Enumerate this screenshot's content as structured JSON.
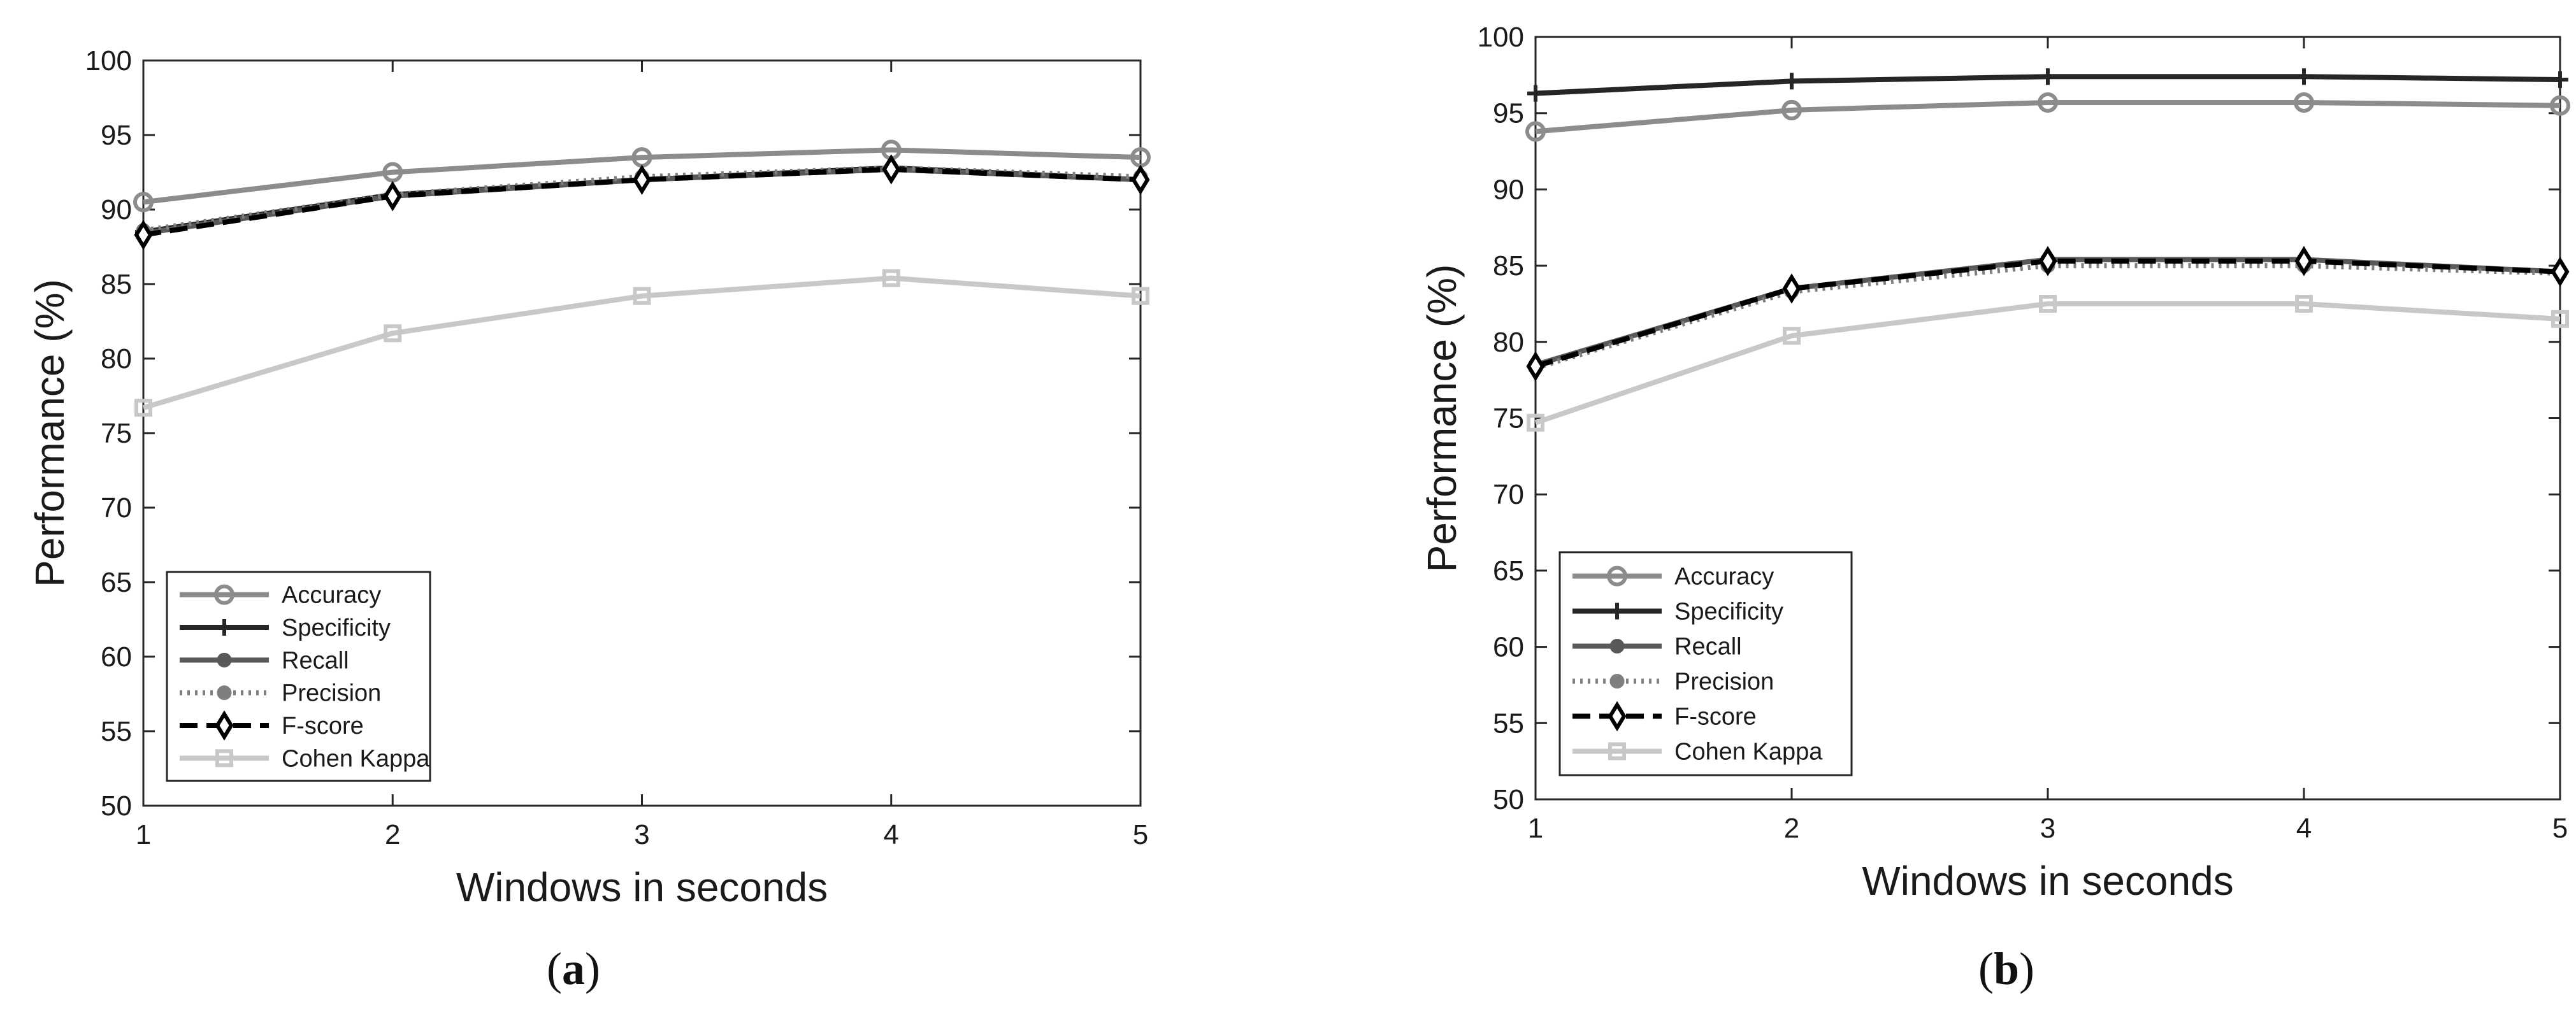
{
  "chart_data": [
    {
      "type": "line",
      "panel": "a",
      "caption_open": "(",
      "caption_letter": "a",
      "caption_close": ")",
      "xlabel": "Windows in seconds",
      "ylabel": "Performance (%)",
      "x": [
        1,
        2,
        3,
        4,
        5
      ],
      "xlim": [
        1,
        5
      ],
      "ylim": [
        50,
        100
      ],
      "xticks": [
        "1",
        "2",
        "3",
        "4",
        "5"
      ],
      "yticks": [
        "50",
        "55",
        "60",
        "65",
        "70",
        "75",
        "80",
        "85",
        "90",
        "95",
        "100"
      ],
      "legend_position": "bottom-left",
      "series": [
        {
          "name": "Accuracy",
          "values": [
            90.5,
            92.5,
            93.5,
            94.0,
            93.5
          ],
          "color": "#8c8c8c",
          "marker": "circle",
          "dash": "solid"
        },
        {
          "name": "Specificity",
          "values": [
            88.5,
            91.0,
            92.0,
            92.8,
            92.0
          ],
          "color": "#262626",
          "marker": "plus",
          "dash": "solid"
        },
        {
          "name": "Recall",
          "values": [
            88.4,
            90.9,
            92.0,
            92.7,
            92.0
          ],
          "color": "#595959",
          "marker": "dot",
          "dash": "solid"
        },
        {
          "name": "Precision",
          "values": [
            88.6,
            91.0,
            92.2,
            92.8,
            92.2
          ],
          "color": "#7f7f7f",
          "marker": "dot",
          "dash": "dotted"
        },
        {
          "name": "F-score",
          "values": [
            88.3,
            90.9,
            92.0,
            92.7,
            92.0
          ],
          "color": "#000000",
          "marker": "diamond",
          "dash": "dashed"
        },
        {
          "name": "Cohen Kappa",
          "values": [
            76.7,
            81.7,
            84.2,
            85.4,
            84.2
          ],
          "color": "#c8c8c8",
          "marker": "square",
          "dash": "solid"
        }
      ]
    },
    {
      "type": "line",
      "panel": "b",
      "caption_open": "(",
      "caption_letter": "b",
      "caption_close": ")",
      "xlabel": "Windows in seconds",
      "ylabel": "Performance (%)",
      "x": [
        1,
        2,
        3,
        4,
        5
      ],
      "xlim": [
        1,
        5
      ],
      "ylim": [
        50,
        100
      ],
      "xticks": [
        "1",
        "2",
        "3",
        "4",
        "5"
      ],
      "yticks": [
        "50",
        "55",
        "60",
        "65",
        "70",
        "75",
        "80",
        "85",
        "90",
        "95",
        "100"
      ],
      "legend_position": "bottom-left",
      "series": [
        {
          "name": "Accuracy",
          "values": [
            93.8,
            95.2,
            95.7,
            95.7,
            95.5
          ],
          "color": "#8c8c8c",
          "marker": "circle",
          "dash": "solid"
        },
        {
          "name": "Specificity",
          "values": [
            96.3,
            97.1,
            97.4,
            97.4,
            97.2
          ],
          "color": "#262626",
          "marker": "plus",
          "dash": "solid"
        },
        {
          "name": "Recall",
          "values": [
            78.5,
            83.5,
            85.4,
            85.4,
            84.6
          ],
          "color": "#595959",
          "marker": "dot",
          "dash": "solid"
        },
        {
          "name": "Precision",
          "values": [
            78.3,
            83.3,
            85.0,
            85.0,
            84.5
          ],
          "color": "#7f7f7f",
          "marker": "dot",
          "dash": "dotted"
        },
        {
          "name": "F-score",
          "values": [
            78.4,
            83.5,
            85.3,
            85.3,
            84.6
          ],
          "color": "#000000",
          "marker": "diamond",
          "dash": "dashed"
        },
        {
          "name": "Cohen Kappa",
          "values": [
            74.7,
            80.4,
            82.5,
            82.5,
            81.5
          ],
          "color": "#c8c8c8",
          "marker": "square",
          "dash": "solid"
        }
      ]
    }
  ]
}
